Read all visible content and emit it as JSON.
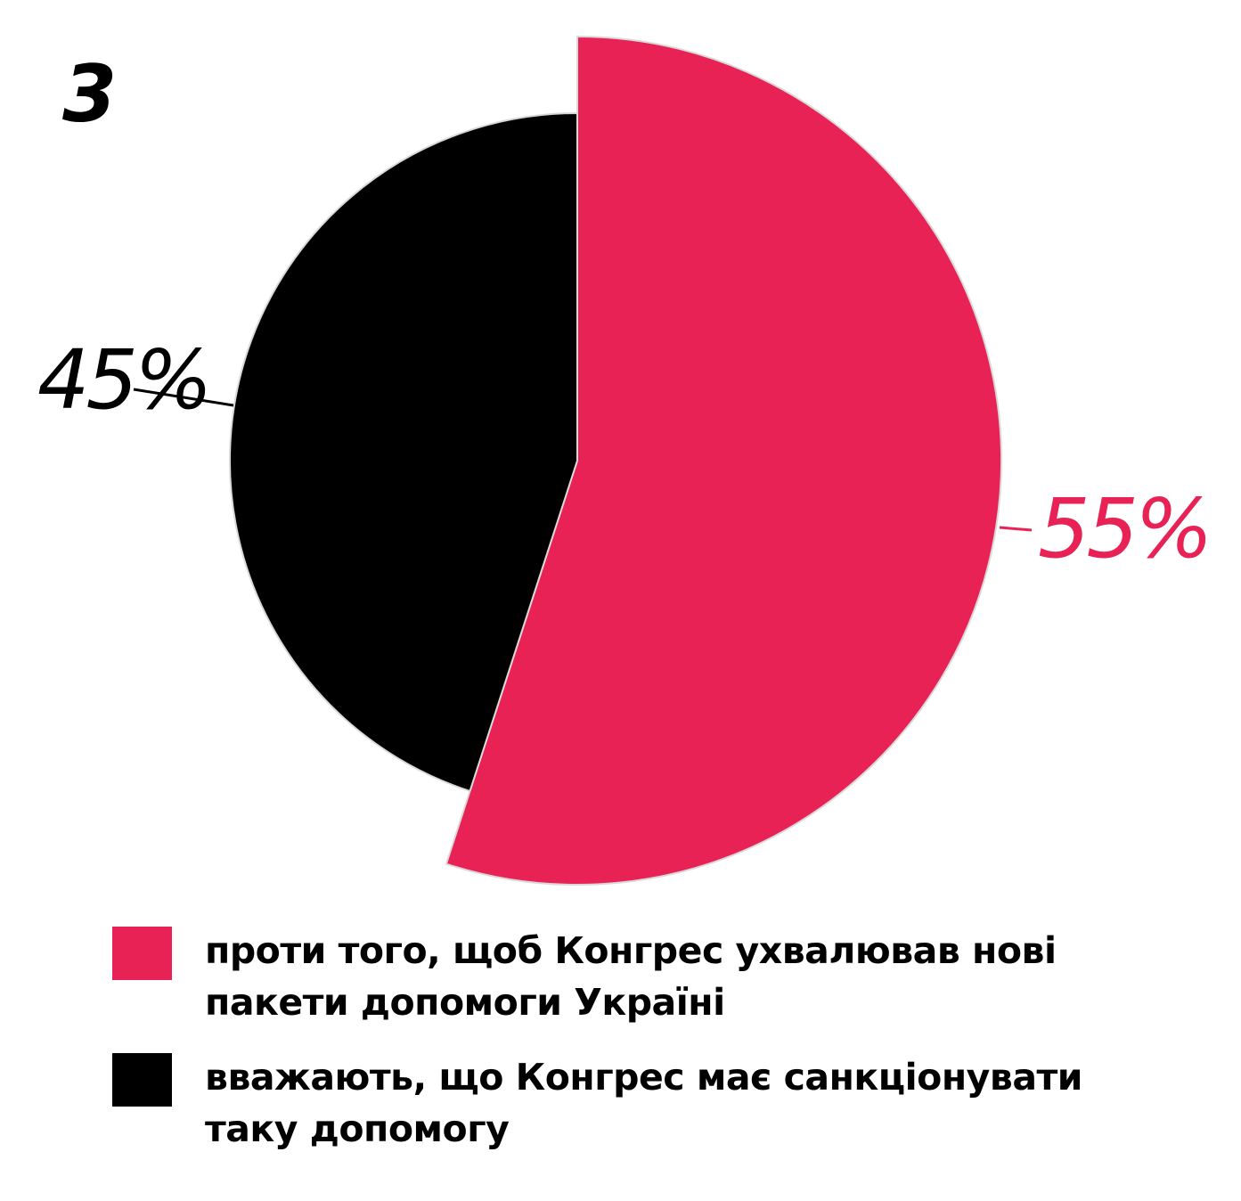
{
  "chart_number": "3",
  "chart_data": {
    "type": "pie",
    "title": "",
    "slices": [
      {
        "label": "проти того, щоб Конгрес ухвалював нові пакети допомоги Україні",
        "value": 55,
        "display": "55%",
        "color": "#e82255",
        "exploded": true
      },
      {
        "label": "вважають, що Конгрес має санкціонувати таку допомогу",
        "value": 45,
        "display": "45%",
        "color": "#000000",
        "exploded": false
      }
    ],
    "legend_position": "bottom"
  },
  "legend": [
    {
      "label": "проти того, щоб Конгрес ухвалював нові пакети допомоги Україні",
      "color": "#e82255"
    },
    {
      "label": "вважають, що Конгрес має санкціонувати таку допомогу",
      "color": "#000000"
    }
  ]
}
